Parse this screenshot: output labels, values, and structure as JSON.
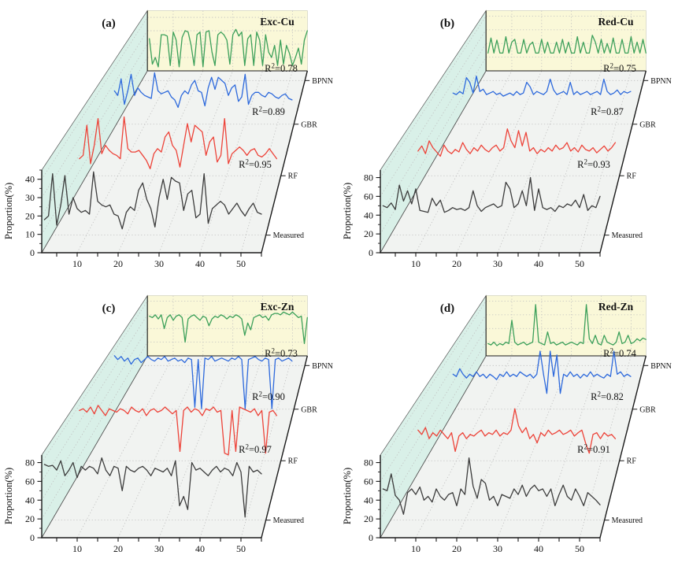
{
  "figure": {
    "background": "#ffffff",
    "ylabel": "Proportion(%)",
    "depth_axis_labels": [
      "Measured",
      "RF",
      "GBR",
      "BPNN"
    ],
    "r2_prefix": "R",
    "r2_superscript": "2",
    "colors": {
      "measured": "#3c3c3c",
      "rf": "#ed4339",
      "gbr": "#2d69dc",
      "bpnn": "#3ca05a",
      "back_wall": "#faf8d8",
      "side_wall": "#d9f0e8",
      "floor": "#f1f3f1",
      "grid": "#bfbfbf",
      "axis": "#1a1a1a"
    }
  },
  "chart_data": [
    {
      "id": "a",
      "panel_label": "(a)",
      "title": "Exc-Cu",
      "type": "line",
      "projection": "3d-waterfall",
      "xticks": [
        10,
        20,
        30,
        40,
        50
      ],
      "xlim": [
        0,
        55
      ],
      "yticks": [
        0,
        10,
        20,
        30,
        40
      ],
      "ylim": [
        0,
        45
      ],
      "ylabel": "Proportion(%)",
      "legend_position": "depth-axis-right",
      "grid": true,
      "series": [
        {
          "name": "Measured",
          "color_key": "measured",
          "r2": null,
          "values": [
            18,
            20,
            43,
            15,
            26,
            42,
            21,
            30,
            24,
            22,
            23,
            21,
            44,
            28,
            26,
            25,
            26,
            21,
            20,
            13,
            22,
            25,
            23,
            34,
            38,
            29,
            24,
            14,
            30,
            40,
            29,
            41,
            39,
            38,
            23,
            32,
            34,
            19,
            21,
            43,
            16,
            24,
            26,
            28,
            26,
            21,
            24,
            27,
            23,
            20,
            24,
            27,
            22,
            21
          ]
        },
        {
          "name": "RF",
          "color_key": "rf",
          "r2": "0.95",
          "values": [
            20,
            22,
            40,
            17,
            28,
            44,
            23,
            28,
            25,
            23,
            22,
            20,
            45,
            26,
            24,
            24,
            25,
            22,
            19,
            14,
            23,
            26,
            24,
            33,
            36,
            28,
            25,
            15,
            28,
            41,
            30,
            40,
            38,
            36,
            22,
            30,
            33,
            18,
            22,
            44,
            17,
            23,
            25,
            27,
            25,
            22,
            25,
            26,
            22,
            21,
            23,
            26,
            23,
            20
          ]
        },
        {
          "name": "GBR",
          "color_key": "gbr",
          "r2": "0.89",
          "values": [
            27,
            24,
            35,
            18,
            27,
            38,
            24,
            29,
            26,
            24,
            23,
            22,
            39,
            27,
            25,
            26,
            27,
            23,
            21,
            16,
            24,
            27,
            25,
            31,
            34,
            27,
            26,
            17,
            29,
            36,
            28,
            36,
            34,
            32,
            24,
            29,
            31,
            20,
            23,
            38,
            18,
            24,
            26,
            26,
            24,
            23,
            26,
            25,
            23,
            22,
            24,
            25,
            22,
            21
          ]
        },
        {
          "name": "BPNN",
          "color_key": "bpnn",
          "r2": "0.78",
          "values": [
            24,
            5,
            10,
            3,
            27,
            27,
            26,
            4,
            29,
            23,
            3,
            25,
            30,
            29,
            19,
            4,
            27,
            29,
            3,
            29,
            30,
            14,
            4,
            27,
            29,
            27,
            23,
            5,
            27,
            31,
            26,
            29,
            4,
            24,
            27,
            4,
            29,
            23,
            4,
            27,
            14,
            10,
            19,
            4,
            23,
            5,
            19,
            13,
            4,
            10,
            17,
            5,
            23,
            30
          ]
        }
      ]
    },
    {
      "id": "b",
      "panel_label": "(b)",
      "title": "Red-Cu",
      "type": "line",
      "projection": "3d-waterfall",
      "xticks": [
        10,
        20,
        30,
        40,
        50
      ],
      "xlim": [
        0,
        55
      ],
      "yticks": [
        0,
        20,
        40,
        60,
        80
      ],
      "ylim": [
        0,
        88
      ],
      "ylabel": "Proportion(%)",
      "legend_position": "depth-axis-right",
      "grid": true,
      "series": [
        {
          "name": "Measured",
          "color_key": "measured",
          "r2": null,
          "values": [
            50,
            48,
            53,
            46,
            72,
            55,
            66,
            52,
            68,
            45,
            44,
            43,
            58,
            50,
            56,
            43,
            45,
            48,
            46,
            47,
            45,
            48,
            66,
            50,
            44,
            48,
            50,
            52,
            48,
            50,
            75,
            68,
            48,
            52,
            66,
            50,
            80,
            45,
            68,
            48,
            46,
            48,
            44,
            50,
            48,
            52,
            50,
            56,
            48,
            62,
            45,
            50,
            48,
            60
          ]
        },
        {
          "name": "RF",
          "color_key": "rf",
          "r2": "0.93",
          "values": [
            48,
            54,
            45,
            60,
            52,
            47,
            42,
            55,
            48,
            45,
            50,
            47,
            58,
            50,
            45,
            52,
            48,
            55,
            50,
            47,
            52,
            55,
            48,
            52,
            74,
            60,
            52,
            72,
            54,
            70,
            48,
            52,
            45,
            50,
            47,
            52,
            48,
            55,
            50,
            52,
            58,
            48,
            52,
            47,
            55,
            50,
            48,
            52,
            46,
            50,
            54,
            48,
            52,
            58
          ]
        },
        {
          "name": "GBR",
          "color_key": "gbr",
          "r2": "0.87",
          "values": [
            50,
            48,
            52,
            49,
            70,
            64,
            50,
            72,
            52,
            55,
            48,
            50,
            52,
            48,
            50,
            46,
            48,
            50,
            47,
            52,
            48,
            50,
            64,
            58,
            48,
            52,
            50,
            48,
            52,
            68,
            54,
            48,
            50,
            52,
            48,
            64,
            48,
            52,
            48,
            50,
            52,
            48,
            50,
            52,
            48,
            68,
            52,
            48,
            50,
            54,
            48,
            52,
            50,
            52
          ]
        },
        {
          "name": "BPNN",
          "color_key": "bpnn",
          "r2": "0.75",
          "values": [
            26,
            48,
            26,
            45,
            26,
            26,
            50,
            26,
            42,
            46,
            26,
            26,
            46,
            26,
            38,
            42,
            26,
            26,
            46,
            26,
            42,
            26,
            26,
            42,
            26,
            46,
            26,
            42,
            26,
            26,
            50,
            26,
            42,
            26,
            26,
            52,
            42,
            26,
            46,
            26,
            40,
            26,
            48,
            26,
            26,
            46,
            26,
            26,
            50,
            26,
            42,
            26,
            46,
            26
          ]
        }
      ]
    },
    {
      "id": "c",
      "panel_label": "(c)",
      "title": "Exc-Zn",
      "type": "line",
      "projection": "3d-waterfall",
      "xticks": [
        10,
        20,
        30,
        40,
        50
      ],
      "xlim": [
        0,
        55
      ],
      "yticks": [
        0,
        20,
        40,
        60,
        80
      ],
      "ylim": [
        0,
        88
      ],
      "ylabel": "Proportion(%)",
      "legend_position": "depth-axis-right",
      "grid": true,
      "series": [
        {
          "name": "Measured",
          "color_key": "measured",
          "r2": null,
          "values": [
            78,
            76,
            77,
            72,
            82,
            66,
            72,
            80,
            64,
            76,
            72,
            76,
            74,
            68,
            85,
            72,
            66,
            76,
            74,
            50,
            76,
            72,
            70,
            74,
            76,
            72,
            66,
            74,
            72,
            70,
            74,
            66,
            82,
            34,
            44,
            30,
            80,
            72,
            74,
            70,
            66,
            72,
            76,
            70,
            74,
            72,
            66,
            80,
            70,
            22,
            76,
            70,
            72,
            68
          ]
        },
        {
          "name": "RF",
          "color_key": "rf",
          "r2": "0.97",
          "values": [
            78,
            80,
            76,
            82,
            74,
            84,
            78,
            72,
            80,
            78,
            76,
            80,
            78,
            74,
            82,
            78,
            76,
            80,
            72,
            78,
            80,
            76,
            78,
            82,
            78,
            74,
            78,
            30,
            78,
            82,
            76,
            80,
            78,
            72,
            80,
            78,
            82,
            76,
            78,
            28,
            26,
            78,
            30,
            82,
            80,
            78,
            76,
            80,
            72,
            78,
            28,
            76,
            78,
            72
          ]
        },
        {
          "name": "GBR",
          "color_key": "gbr",
          "r2": "0.90",
          "values": [
            79,
            74,
            78,
            72,
            76,
            68,
            74,
            76,
            70,
            74,
            78,
            74,
            72,
            76,
            74,
            78,
            72,
            74,
            76,
            72,
            74,
            70,
            76,
            74,
            12,
            74,
            10,
            76,
            74,
            78,
            72,
            74,
            76,
            74,
            72,
            76,
            74,
            78,
            74,
            10,
            74,
            76,
            78,
            74,
            72,
            76,
            74,
            10,
            74,
            76,
            72,
            74,
            76,
            72
          ]
        },
        {
          "name": "BPNN",
          "color_key": "bpnn",
          "r2": "0.73",
          "values": [
            58,
            56,
            60,
            54,
            60,
            40,
            56,
            60,
            52,
            58,
            60,
            56,
            20,
            54,
            58,
            60,
            56,
            52,
            58,
            56,
            44,
            54,
            58,
            56,
            60,
            58,
            54,
            58,
            56,
            60,
            58,
            54,
            30,
            48,
            38,
            56,
            58,
            60,
            56,
            58,
            52,
            60,
            62,
            62,
            60,
            64,
            62,
            60,
            64,
            60,
            56,
            58,
            18,
            56
          ]
        }
      ]
    },
    {
      "id": "d",
      "panel_label": "(d)",
      "title": "Red-Zn",
      "type": "line",
      "projection": "3d-waterfall",
      "xticks": [
        10,
        20,
        30,
        40,
        50
      ],
      "xlim": [
        0,
        55
      ],
      "yticks": [
        0,
        20,
        40,
        60,
        80
      ],
      "ylim": [
        0,
        88
      ],
      "ylabel": "Proportion(%)",
      "legend_position": "depth-axis-right",
      "grid": true,
      "series": [
        {
          "name": "Measured",
          "color_key": "measured",
          "r2": null,
          "values": [
            52,
            50,
            68,
            45,
            40,
            25,
            48,
            52,
            46,
            54,
            40,
            44,
            38,
            52,
            44,
            40,
            46,
            48,
            34,
            52,
            46,
            85,
            55,
            42,
            62,
            58,
            40,
            44,
            34,
            46,
            44,
            42,
            52,
            46,
            56,
            44,
            52,
            56,
            50,
            52,
            44,
            52,
            34,
            46,
            56,
            44,
            40,
            52,
            44,
            34,
            48,
            44,
            40,
            35
          ]
        },
        {
          "name": "RF",
          "color_key": "rf",
          "r2": "0.91",
          "values": [
            55,
            50,
            58,
            45,
            52,
            48,
            55,
            50,
            45,
            52,
            30,
            48,
            52,
            45,
            50,
            48,
            52,
            55,
            48,
            52,
            50,
            55,
            48,
            52,
            50,
            55,
            80,
            60,
            52,
            58,
            45,
            50,
            40,
            52,
            48,
            55,
            50,
            52,
            55,
            50,
            52,
            55,
            48,
            52,
            55,
            40,
            28,
            50,
            52,
            45,
            52,
            48,
            50,
            45
          ]
        },
        {
          "name": "GBR",
          "color_key": "gbr",
          "r2": "0.82",
          "values": [
            55,
            52,
            62,
            55,
            50,
            55,
            52,
            58,
            52,
            55,
            50,
            55,
            52,
            48,
            55,
            52,
            58,
            52,
            55,
            52,
            58,
            55,
            52,
            55,
            50,
            55,
            85,
            55,
            30,
            85,
            52,
            80,
            30,
            55,
            52,
            58,
            52,
            55,
            50,
            55,
            52,
            58,
            52,
            55,
            52,
            50,
            55,
            52,
            85,
            55,
            58,
            52,
            55,
            52
          ]
        },
        {
          "name": "BPNN",
          "color_key": "bpnn",
          "r2": "0.74",
          "values": [
            18,
            16,
            20,
            15,
            18,
            16,
            20,
            18,
            52,
            20,
            16,
            18,
            20,
            16,
            18,
            20,
            75,
            20,
            18,
            16,
            35,
            18,
            20,
            16,
            18,
            20,
            16,
            18,
            20,
            18,
            16,
            20,
            18,
            75,
            25,
            18,
            30,
            18,
            16,
            30,
            20,
            18,
            16,
            20,
            35,
            18,
            20,
            30,
            18,
            20,
            25,
            22,
            26,
            24
          ]
        }
      ]
    }
  ]
}
